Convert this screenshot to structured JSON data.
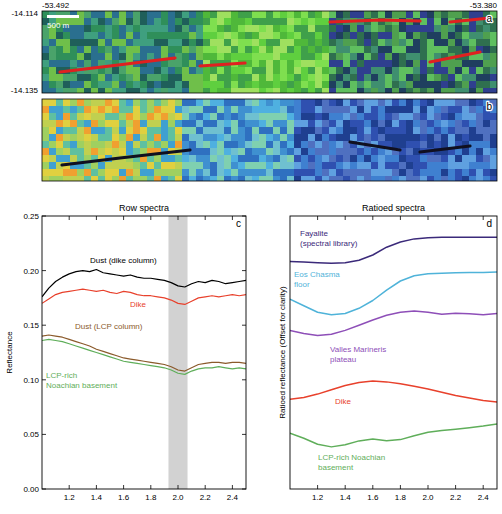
{
  "figure": {
    "coords": {
      "lon_left": "-53.492",
      "lon_right": "-53.380",
      "lat_top": "-14.114",
      "lat_bottom": "-14.135"
    },
    "scale_bar": "500 m",
    "image_panels": [
      "a",
      "b"
    ]
  },
  "chart_data": [
    {
      "type": "line",
      "panel": "c",
      "title": "Row spectra",
      "y_label": "Reflectance",
      "x": [
        1.0,
        1.05,
        1.1,
        1.15,
        1.2,
        1.25,
        1.3,
        1.35,
        1.4,
        1.45,
        1.5,
        1.55,
        1.6,
        1.65,
        1.7,
        1.75,
        1.8,
        1.85,
        1.9,
        1.95,
        2.0,
        2.05,
        2.1,
        2.15,
        2.2,
        2.25,
        2.3,
        2.35,
        2.4,
        2.45,
        2.5
      ],
      "xlim": [
        1.0,
        2.5
      ],
      "xticks": [
        1.2,
        1.4,
        1.6,
        1.8,
        {
          "value": 2.0,
          "label": "2.0"
        },
        2.2,
        2.4
      ],
      "ylim": [
        0,
        0.25
      ],
      "yticks": [
        {
          "value": 0,
          "label": "0.00"
        },
        0.05,
        {
          "value": 0.1,
          "label": "0.10"
        },
        0.15,
        {
          "value": 0.2,
          "label": "0.20"
        },
        0.25
      ],
      "shaded_band": [
        1.93,
        2.07
      ],
      "series": [
        {
          "name": "Dust (dike column)",
          "color": "#000000",
          "values": [
            0.176,
            0.184,
            0.19,
            0.194,
            0.197,
            0.199,
            0.2,
            0.199,
            0.201,
            0.198,
            0.197,
            0.196,
            0.195,
            0.196,
            0.194,
            0.193,
            0.193,
            0.192,
            0.191,
            0.189,
            0.186,
            0.185,
            0.188,
            0.19,
            0.189,
            0.191,
            0.19,
            0.188,
            0.189,
            0.19,
            0.191
          ]
        },
        {
          "name": "Dike",
          "color": "#e8412c",
          "values": [
            0.17,
            0.174,
            0.178,
            0.18,
            0.181,
            0.182,
            0.183,
            0.182,
            0.181,
            0.182,
            0.18,
            0.179,
            0.181,
            0.18,
            0.178,
            0.177,
            0.177,
            0.176,
            0.175,
            0.173,
            0.17,
            0.169,
            0.172,
            0.175,
            0.176,
            0.177,
            0.176,
            0.177,
            0.178,
            0.177,
            0.178
          ]
        },
        {
          "name": "Dust (LCP column)",
          "color": "#8b5a2b",
          "values": [
            0.14,
            0.141,
            0.14,
            0.139,
            0.137,
            0.135,
            0.133,
            0.131,
            0.128,
            0.126,
            0.124,
            0.122,
            0.12,
            0.119,
            0.118,
            0.117,
            0.116,
            0.115,
            0.114,
            0.112,
            0.109,
            0.108,
            0.111,
            0.114,
            0.115,
            0.116,
            0.116,
            0.115,
            0.116,
            0.116,
            0.115
          ]
        },
        {
          "name": "LCP-rich Noachian basement",
          "color": "#5fae5a",
          "values": [
            0.136,
            0.137,
            0.136,
            0.135,
            0.133,
            0.131,
            0.129,
            0.127,
            0.125,
            0.123,
            0.121,
            0.119,
            0.117,
            0.116,
            0.115,
            0.114,
            0.113,
            0.112,
            0.111,
            0.109,
            0.106,
            0.105,
            0.108,
            0.11,
            0.111,
            0.111,
            0.112,
            0.111,
            0.11,
            0.111,
            0.11
          ]
        }
      ]
    },
    {
      "type": "line",
      "panel": "d",
      "title": "Ratioed spectra",
      "y_label": "Ratioed reflectance (Offset for clarity)",
      "x": [
        1.0,
        1.1,
        1.2,
        1.3,
        1.4,
        1.5,
        1.6,
        1.7,
        1.8,
        1.9,
        2.0,
        2.1,
        2.2,
        2.3,
        2.4,
        2.5
      ],
      "xlim": [
        1.0,
        2.5
      ],
      "xticks": [
        1.2,
        1.4,
        1.6,
        1.8,
        {
          "value": 2.0,
          "label": "2.0"
        },
        2.2,
        2.4
      ],
      "ylim": [
        0,
        1.05
      ],
      "tick_labels": "x",
      "series": [
        {
          "name": "Fayalite (spectral library)",
          "color": "#3b2a7a",
          "values": [
            0.875,
            0.873,
            0.87,
            0.868,
            0.87,
            0.88,
            0.9,
            0.93,
            0.95,
            0.962,
            0.966,
            0.968,
            0.968,
            0.968,
            0.968,
            0.968
          ]
        },
        {
          "name": "Eos Chasma floor",
          "color": "#4fb3d9",
          "values": [
            0.73,
            0.705,
            0.68,
            0.67,
            0.675,
            0.695,
            0.725,
            0.765,
            0.8,
            0.82,
            0.828,
            0.83,
            0.832,
            0.833,
            0.833,
            0.835
          ]
        },
        {
          "name": "Valles Marineris plateau",
          "color": "#8e4fb8",
          "values": [
            0.61,
            0.598,
            0.59,
            0.595,
            0.61,
            0.63,
            0.65,
            0.668,
            0.68,
            0.685,
            0.68,
            0.672,
            0.676,
            0.674,
            0.67,
            0.675
          ]
        },
        {
          "name": "Dike",
          "color": "#e8412c",
          "values": [
            0.345,
            0.352,
            0.365,
            0.382,
            0.398,
            0.41,
            0.415,
            0.412,
            0.405,
            0.395,
            0.385,
            0.372,
            0.36,
            0.35,
            0.34,
            0.335
          ]
        },
        {
          "name": "LCP-rich Noachian basement",
          "color": "#5fae5a",
          "values": [
            0.215,
            0.195,
            0.172,
            0.162,
            0.17,
            0.185,
            0.192,
            0.186,
            0.19,
            0.205,
            0.218,
            0.225,
            0.23,
            0.236,
            0.242,
            0.25
          ]
        }
      ]
    }
  ]
}
